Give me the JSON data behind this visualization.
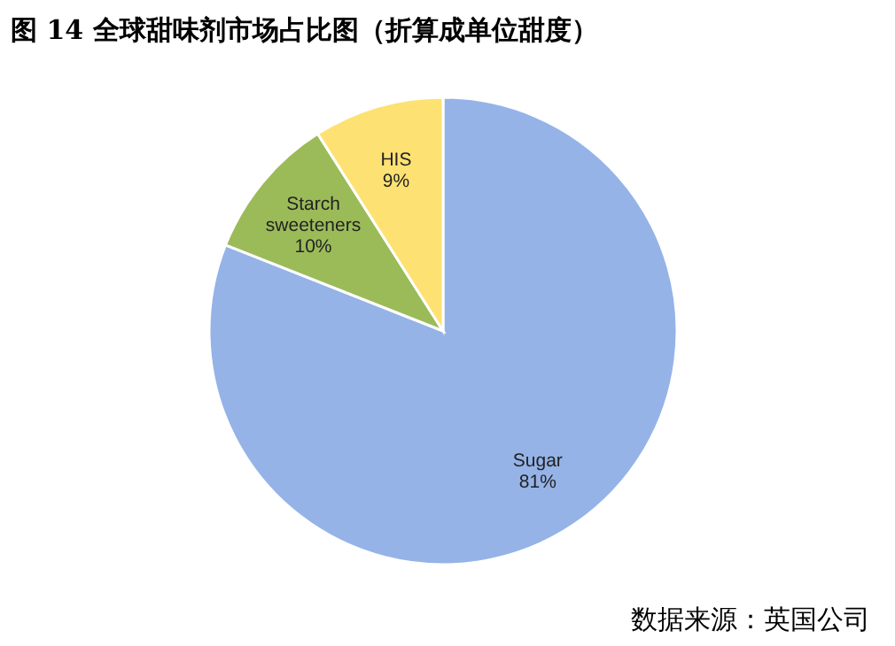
{
  "chart_data": {
    "type": "pie",
    "title": "图 14  全球甜味剂市场占比图（折算成单位甜度）",
    "annotations": [
      "数据来源：英国公司"
    ],
    "categories": [
      "Sugar",
      "Starch sweeteners",
      "HIS"
    ],
    "values": [
      81,
      10,
      9
    ],
    "value_labels": [
      "81%",
      "10%",
      "9%"
    ],
    "colors": [
      "#95b3e7",
      "#9bbb59",
      "#fde273"
    ]
  }
}
